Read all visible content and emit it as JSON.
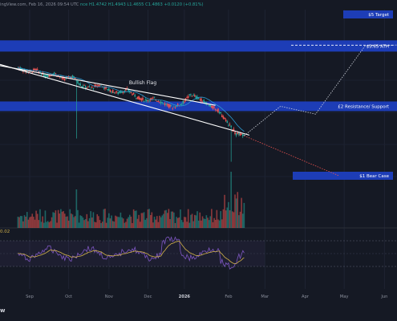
{
  "header": {
    "published": "ingView.com, Feb 16, 2026 09:54 UTC",
    "ohlc": "nce H1.4742 H1.4943 L1.4655 C1.4863 +0.0120 (+0.81%)"
  },
  "rsi_value": "0.02",
  "logo_text": "w",
  "colors": {
    "background": "#151924",
    "zone_blue": "#1e3fbf",
    "up_candle": "#26a69a",
    "down_candle": "#ef5350",
    "flag_line": "#ffffff",
    "ma_line": "#2b9bd3",
    "projection_up": "#cfd3dc",
    "projection_down": "#ef5350",
    "rsi_line": "#7e57c2",
    "rsi_ma": "#d1b14a"
  },
  "chart_data": {
    "type": "candlestick",
    "title": "",
    "x_ticks": [
      "Sep",
      "Oct",
      "Nov",
      "Dec",
      "2026",
      "Feb",
      "Mar",
      "Apr",
      "May",
      "Jun"
    ],
    "zones": [
      {
        "label": "$5 Target",
        "price": 5.0
      },
      {
        "label": "$3.65 ATH",
        "price": 3.65
      },
      {
        "label": "£2 Resistance/ Support",
        "price": 2.0
      },
      {
        "label": "$1 Bear Case",
        "price": 1.0
      }
    ],
    "annotations": [
      "Bullish Flag"
    ],
    "candles_weekly": [
      {
        "date": "2025-08-26",
        "open": 2.95,
        "close": 2.82
      },
      {
        "date": "2025-09-02",
        "open": 2.82,
        "close": 2.88
      },
      {
        "date": "2025-09-09",
        "open": 2.88,
        "close": 2.7
      },
      {
        "date": "2025-09-16",
        "open": 2.7,
        "close": 2.78
      },
      {
        "date": "2025-09-23",
        "open": 2.78,
        "close": 2.62
      },
      {
        "date": "2025-09-30",
        "open": 2.62,
        "close": 2.7
      },
      {
        "date": "2025-10-07",
        "open": 2.7,
        "close": 2.45
      },
      {
        "date": "2025-10-14",
        "open": 2.45,
        "close": 2.4
      },
      {
        "date": "2025-10-21",
        "open": 2.4,
        "close": 2.48
      },
      {
        "date": "2025-10-28",
        "open": 2.48,
        "close": 2.35
      },
      {
        "date": "2025-11-04",
        "open": 2.35,
        "close": 2.28
      },
      {
        "date": "2025-11-11",
        "open": 2.28,
        "close": 2.36
      },
      {
        "date": "2025-11-18",
        "open": 2.36,
        "close": 2.2
      },
      {
        "date": "2025-11-25",
        "open": 2.2,
        "close": 2.12
      },
      {
        "date": "2025-12-02",
        "open": 2.12,
        "close": 2.16
      },
      {
        "date": "2025-12-09",
        "open": 2.16,
        "close": 2.06
      },
      {
        "date": "2025-12-16",
        "open": 2.06,
        "close": 1.98
      },
      {
        "date": "2025-12-23",
        "open": 1.98,
        "close": 2.05
      },
      {
        "date": "2025-12-30",
        "open": 2.05,
        "close": 2.25
      },
      {
        "date": "2026-01-06",
        "open": 2.25,
        "close": 2.15
      },
      {
        "date": "2026-01-13",
        "open": 2.15,
        "close": 2.02
      },
      {
        "date": "2026-01-20",
        "open": 2.02,
        "close": 1.92
      },
      {
        "date": "2026-01-27",
        "open": 1.92,
        "close": 1.7
      },
      {
        "date": "2026-02-03",
        "open": 1.7,
        "close": 1.52
      },
      {
        "date": "2026-02-10",
        "open": 1.52,
        "close": 1.4863
      }
    ],
    "projections": [
      {
        "name": "bullish",
        "points": [
          [
            "2026-02-16",
            1.49
          ],
          [
            "2026-03-16",
            2.0
          ],
          [
            "2026-04-12",
            1.85
          ],
          [
            "2026-05-20",
            3.65
          ],
          [
            "2026-06-25",
            3.7
          ]
        ]
      },
      {
        "name": "bearish",
        "points": [
          [
            "2026-02-16",
            1.49
          ],
          [
            "2026-04-30",
            1.0
          ]
        ]
      }
    ]
  }
}
